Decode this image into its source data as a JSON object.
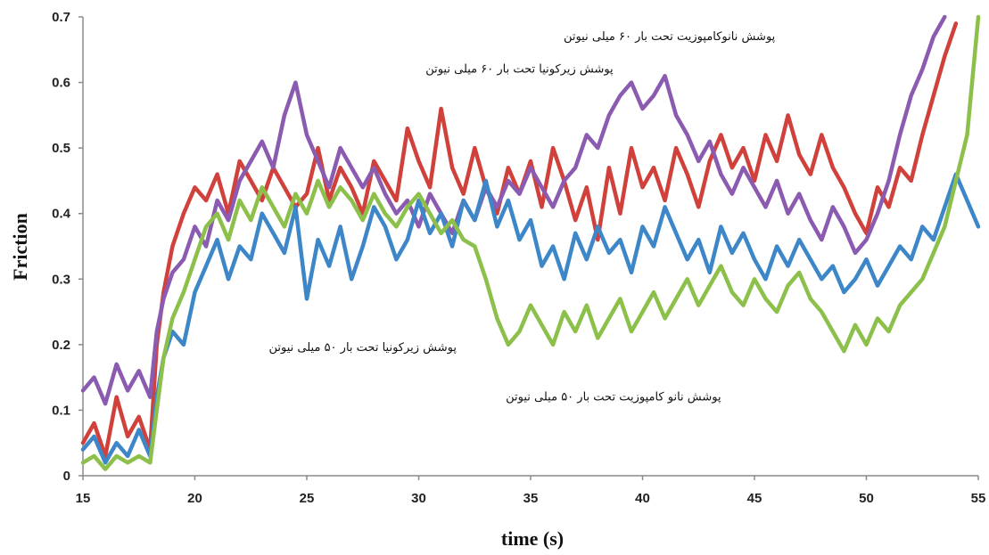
{
  "chart_data": {
    "type": "line",
    "title": "",
    "xlabel": "time (s)",
    "ylabel": "Friction",
    "xlim": [
      15,
      55
    ],
    "ylim": [
      0,
      0.7
    ],
    "xticks": [
      "15",
      "20",
      "25",
      "30",
      "35",
      "40",
      "45",
      "50",
      "55"
    ],
    "yticks": [
      "0",
      "0.1",
      "0.2",
      "0.3",
      "0.4",
      "0.5",
      "0.6",
      "0.7"
    ],
    "grid": false,
    "legend": "none",
    "series": [
      {
        "color": "#d0413c",
        "x": [
          15,
          15.5,
          16,
          16.5,
          17,
          17.5,
          18,
          18.3,
          18.6,
          19,
          19.5,
          20,
          20.5,
          21,
          21.5,
          22,
          22.5,
          23,
          23.5,
          24,
          24.5,
          25,
          25.5,
          26,
          26.5,
          27,
          27.5,
          28,
          28.5,
          29,
          29.5,
          30,
          30.5,
          31,
          31.5,
          32,
          32.5,
          33,
          33.5,
          34,
          34.5,
          35,
          35.5,
          36,
          36.5,
          37,
          37.5,
          38,
          38.5,
          39,
          39.5,
          40,
          40.5,
          41,
          41.5,
          42,
          42.5,
          43,
          43.5,
          44,
          44.5,
          45,
          45.5,
          46,
          46.5,
          47,
          47.5,
          48,
          48.5,
          49,
          49.5,
          50,
          50.5,
          51,
          51.5,
          52,
          52.5,
          53,
          53.5,
          54
        ],
        "y": [
          0.05,
          0.08,
          0.03,
          0.12,
          0.06,
          0.09,
          0.04,
          0.2,
          0.28,
          0.35,
          0.4,
          0.44,
          0.42,
          0.46,
          0.4,
          0.48,
          0.45,
          0.42,
          0.47,
          0.44,
          0.41,
          0.43,
          0.5,
          0.42,
          0.47,
          0.44,
          0.4,
          0.48,
          0.45,
          0.42,
          0.53,
          0.48,
          0.44,
          0.56,
          0.47,
          0.43,
          0.5,
          0.44,
          0.4,
          0.47,
          0.43,
          0.48,
          0.41,
          0.5,
          0.45,
          0.39,
          0.44,
          0.36,
          0.47,
          0.4,
          0.5,
          0.44,
          0.47,
          0.42,
          0.5,
          0.46,
          0.41,
          0.48,
          0.52,
          0.47,
          0.5,
          0.45,
          0.52,
          0.48,
          0.55,
          0.49,
          0.46,
          0.52,
          0.47,
          0.44,
          0.4,
          0.37,
          0.44,
          0.41,
          0.47,
          0.45,
          0.52,
          0.58,
          0.64,
          0.69
        ]
      },
      {
        "color": "#8a5bb0",
        "x": [
          15,
          15.5,
          16,
          16.5,
          17,
          17.5,
          18,
          18.3,
          18.6,
          19,
          19.5,
          20,
          20.5,
          21,
          21.5,
          22,
          22.5,
          23,
          23.5,
          24,
          24.5,
          25,
          25.5,
          26,
          26.5,
          27,
          27.5,
          28,
          28.5,
          29,
          29.5,
          30,
          30.5,
          31,
          31.5,
          32,
          32.5,
          33,
          33.5,
          34,
          34.5,
          35,
          35.5,
          36,
          36.5,
          37,
          37.5,
          38,
          38.5,
          39,
          39.5,
          40,
          40.5,
          41,
          41.5,
          42,
          42.5,
          43,
          43.5,
          44,
          44.5,
          45,
          45.5,
          46,
          46.5,
          47,
          47.5,
          48,
          48.5,
          49,
          49.5,
          50,
          50.5,
          51,
          51.5,
          52,
          52.5,
          53,
          53.5
        ],
        "y": [
          0.13,
          0.15,
          0.11,
          0.17,
          0.13,
          0.16,
          0.12,
          0.22,
          0.27,
          0.31,
          0.33,
          0.38,
          0.35,
          0.42,
          0.39,
          0.45,
          0.48,
          0.51,
          0.47,
          0.55,
          0.6,
          0.52,
          0.48,
          0.44,
          0.5,
          0.47,
          0.44,
          0.47,
          0.43,
          0.4,
          0.42,
          0.38,
          0.43,
          0.4,
          0.37,
          0.42,
          0.39,
          0.44,
          0.41,
          0.45,
          0.43,
          0.47,
          0.44,
          0.41,
          0.45,
          0.47,
          0.52,
          0.5,
          0.55,
          0.58,
          0.6,
          0.56,
          0.58,
          0.61,
          0.55,
          0.52,
          0.48,
          0.51,
          0.46,
          0.43,
          0.47,
          0.44,
          0.41,
          0.45,
          0.4,
          0.43,
          0.39,
          0.36,
          0.41,
          0.38,
          0.34,
          0.36,
          0.4,
          0.45,
          0.52,
          0.58,
          0.62,
          0.67,
          0.7
        ]
      },
      {
        "color": "#3d87c9",
        "x": [
          15,
          15.5,
          16,
          16.5,
          17,
          17.5,
          18,
          18.3,
          18.6,
          19,
          19.5,
          20,
          20.5,
          21,
          21.5,
          22,
          22.5,
          23,
          23.5,
          24,
          24.5,
          25,
          25.5,
          26,
          26.5,
          27,
          27.5,
          28,
          28.5,
          29,
          29.5,
          30,
          30.5,
          31,
          31.5,
          32,
          32.5,
          33,
          33.5,
          34,
          34.5,
          35,
          35.5,
          36,
          36.5,
          37,
          37.5,
          38,
          38.5,
          39,
          39.5,
          40,
          40.5,
          41,
          41.5,
          42,
          42.5,
          43,
          43.5,
          44,
          44.5,
          45,
          45.5,
          46,
          46.5,
          47,
          47.5,
          48,
          48.5,
          49,
          49.5,
          50,
          50.5,
          51,
          51.5,
          52,
          52.5,
          53,
          53.5,
          54,
          54.5,
          55
        ],
        "y": [
          0.04,
          0.06,
          0.02,
          0.05,
          0.03,
          0.07,
          0.03,
          0.12,
          0.18,
          0.22,
          0.2,
          0.28,
          0.32,
          0.36,
          0.3,
          0.35,
          0.33,
          0.4,
          0.37,
          0.34,
          0.41,
          0.27,
          0.36,
          0.32,
          0.38,
          0.3,
          0.35,
          0.41,
          0.38,
          0.33,
          0.36,
          0.42,
          0.37,
          0.4,
          0.35,
          0.42,
          0.39,
          0.45,
          0.38,
          0.42,
          0.36,
          0.39,
          0.32,
          0.35,
          0.3,
          0.37,
          0.33,
          0.38,
          0.34,
          0.36,
          0.31,
          0.38,
          0.35,
          0.41,
          0.37,
          0.33,
          0.36,
          0.31,
          0.38,
          0.34,
          0.37,
          0.33,
          0.3,
          0.35,
          0.32,
          0.36,
          0.33,
          0.3,
          0.32,
          0.28,
          0.3,
          0.33,
          0.29,
          0.32,
          0.35,
          0.33,
          0.38,
          0.36,
          0.41,
          0.46,
          0.42,
          0.38
        ]
      },
      {
        "color": "#8cc04a",
        "x": [
          15,
          15.5,
          16,
          16.5,
          17,
          17.5,
          18,
          18.3,
          18.6,
          19,
          19.5,
          20,
          20.5,
          21,
          21.5,
          22,
          22.5,
          23,
          23.5,
          24,
          24.5,
          25,
          25.5,
          26,
          26.5,
          27,
          27.5,
          28,
          28.5,
          29,
          29.5,
          30,
          30.5,
          31,
          31.5,
          32,
          32.5,
          33,
          33.5,
          34,
          34.5,
          35,
          35.5,
          36,
          36.5,
          37,
          37.5,
          38,
          38.5,
          39,
          39.5,
          40,
          40.5,
          41,
          41.5,
          42,
          42.5,
          43,
          43.5,
          44,
          44.5,
          45,
          45.5,
          46,
          46.5,
          47,
          47.5,
          48,
          48.5,
          49,
          49.5,
          50,
          50.5,
          51,
          51.5,
          52,
          52.5,
          53,
          53.5,
          54,
          54.5,
          55
        ],
        "y": [
          0.02,
          0.03,
          0.01,
          0.03,
          0.02,
          0.03,
          0.02,
          0.1,
          0.18,
          0.24,
          0.28,
          0.33,
          0.38,
          0.4,
          0.36,
          0.42,
          0.39,
          0.44,
          0.41,
          0.38,
          0.43,
          0.4,
          0.45,
          0.41,
          0.44,
          0.42,
          0.39,
          0.43,
          0.4,
          0.38,
          0.41,
          0.43,
          0.4,
          0.37,
          0.39,
          0.36,
          0.35,
          0.3,
          0.24,
          0.2,
          0.22,
          0.26,
          0.23,
          0.2,
          0.25,
          0.22,
          0.26,
          0.21,
          0.24,
          0.27,
          0.22,
          0.25,
          0.28,
          0.24,
          0.27,
          0.3,
          0.26,
          0.29,
          0.32,
          0.28,
          0.26,
          0.3,
          0.27,
          0.25,
          0.29,
          0.31,
          0.27,
          0.25,
          0.22,
          0.19,
          0.23,
          0.2,
          0.24,
          0.22,
          0.26,
          0.28,
          0.3,
          0.34,
          0.38,
          0.45,
          0.52,
          0.7
        ]
      }
    ],
    "annotations": [
      {
        "text": "پوشش نانوکامپوزیت تحت بار ۶۰ میلی نیوتن",
        "x": 41.2,
        "y": 0.665
      },
      {
        "text": "پوشش زیرکونیا تحت بار ۶۰ میلی نیوتن",
        "x": 34.5,
        "y": 0.615
      },
      {
        "text": "پوشش زیرکونیا تحت بار ۵۰ میلی نیوتن",
        "x": 27.5,
        "y": 0.19
      },
      {
        "text": "پوشش نانو کامپوزیت تحت بار ۵۰ میلی نیوتن",
        "x": 38.7,
        "y": 0.115
      }
    ]
  }
}
